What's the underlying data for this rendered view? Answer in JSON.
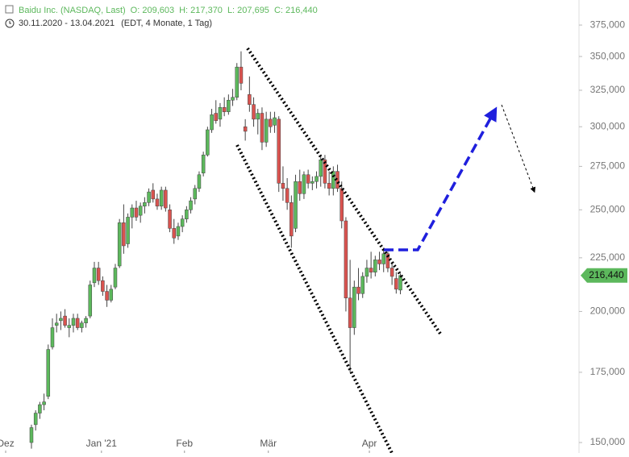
{
  "chart_data": {
    "type": "candlestick",
    "title": "Baidu Inc. (NASDAQ, Last)",
    "ohlc_labels": [
      "O: 209,603",
      "H: 217,370",
      "L: 207,695",
      "C: 216,440"
    ],
    "subtitle": "30.11.2020 - 13.04.2021",
    "subtitle_note": "(EDT, 4 Monate, 1 Tag)",
    "log_y": true,
    "up_color": "#5cb85c",
    "down_color": "#d9534f",
    "x": [
      0,
      1,
      2,
      3,
      4,
      5,
      6,
      7,
      8,
      9,
      10,
      11,
      12,
      13,
      14,
      15,
      16,
      17,
      18,
      19,
      20,
      21,
      22,
      23,
      24,
      25,
      26,
      27,
      28,
      29,
      30,
      31,
      32,
      33,
      34,
      35,
      36,
      37,
      38,
      39,
      40,
      41,
      42,
      43,
      44,
      45,
      46,
      47,
      48,
      49,
      50,
      51,
      52,
      53,
      54,
      55,
      56,
      57,
      58,
      59,
      60,
      61,
      62,
      63,
      64,
      65,
      66,
      67,
      68,
      69,
      70,
      71,
      72,
      73,
      74,
      75,
      76,
      77,
      78,
      79,
      80,
      81,
      82,
      83,
      84,
      85,
      86,
      87,
      88
    ],
    "open": [
      150000,
      156000,
      160000,
      163000,
      166000,
      185000,
      194000,
      196000,
      198000,
      193000,
      194000,
      197000,
      193000,
      195000,
      198000,
      213000,
      220000,
      214000,
      209000,
      205000,
      211000,
      221000,
      243000,
      232000,
      246000,
      251000,
      247000,
      252000,
      254000,
      261000,
      256000,
      252000,
      261000,
      250000,
      240000,
      236000,
      241000,
      245000,
      250000,
      256000,
      262000,
      271000,
      282000,
      298000,
      309000,
      305000,
      313000,
      310000,
      318000,
      320000,
      342000,
      300000,
      322000,
      315000,
      305000,
      309000,
      290000,
      305000,
      301000,
      305000,
      265000,
      262000,
      254000,
      240000,
      266000,
      259000,
      270000,
      265000,
      266000,
      269000,
      279000,
      265000,
      262000,
      272000,
      262000,
      244000,
      206000,
      193000,
      211000,
      208000,
      216000,
      220000,
      218000,
      224000,
      222000,
      227000,
      220000,
      215000,
      209603
    ],
    "high": [
      156000,
      161000,
      164000,
      167000,
      186000,
      197000,
      199000,
      200000,
      201000,
      197000,
      199000,
      199000,
      196000,
      198000,
      214000,
      223000,
      223000,
      216000,
      212000,
      212000,
      222000,
      245000,
      253000,
      248000,
      253000,
      255000,
      254000,
      257000,
      262000,
      265000,
      259000,
      263000,
      263000,
      253000,
      245000,
      243000,
      247000,
      252000,
      257000,
      264000,
      272000,
      284000,
      300000,
      312000,
      318000,
      316000,
      320000,
      322000,
      326000,
      345000,
      354000,
      305000,
      335000,
      320000,
      312000,
      313000,
      310000,
      310000,
      310000,
      307000,
      275000,
      268000,
      258000,
      270000,
      273000,
      272000,
      273000,
      269000,
      272000,
      282000,
      282000,
      272000,
      275000,
      276000,
      266000,
      246000,
      224000,
      214000,
      220000,
      218000,
      224000,
      228000,
      226000,
      228000,
      230000,
      228000,
      223000,
      218000,
      217370
    ],
    "low": [
      148000,
      154000,
      158000,
      161000,
      165000,
      184000,
      191000,
      192000,
      193000,
      189000,
      191000,
      192000,
      191000,
      193000,
      197000,
      211000,
      212000,
      207000,
      202000,
      204000,
      210000,
      220000,
      227000,
      230000,
      240000,
      244000,
      243000,
      248000,
      252000,
      254000,
      250000,
      250000,
      249000,
      238000,
      232000,
      234000,
      238000,
      243000,
      248000,
      253000,
      260000,
      269000,
      281000,
      296000,
      302000,
      300000,
      307000,
      308000,
      314000,
      318000,
      325000,
      291000,
      310000,
      300000,
      295000,
      285000,
      287000,
      296000,
      296000,
      260000,
      255000,
      250000,
      230000,
      238000,
      255000,
      256000,
      262000,
      261000,
      262000,
      263000,
      262000,
      258000,
      258000,
      260000,
      240000,
      200000,
      175000,
      190000,
      205000,
      206000,
      213000,
      215000,
      216000,
      219000,
      218000,
      218000,
      212000,
      208000,
      207695
    ],
    "close": [
      155000,
      160000,
      163000,
      164000,
      184000,
      193000,
      195000,
      197000,
      194000,
      194000,
      197000,
      193000,
      195000,
      197000,
      212000,
      220000,
      214000,
      209000,
      205000,
      210000,
      220000,
      243000,
      231000,
      246000,
      251000,
      246000,
      252000,
      254000,
      260000,
      256000,
      252000,
      261000,
      251000,
      240000,
      235000,
      241000,
      245000,
      250000,
      255000,
      262000,
      270000,
      282000,
      298000,
      308000,
      304000,
      313000,
      310000,
      318000,
      320000,
      342000,
      330000,
      297000,
      315000,
      305000,
      309000,
      290000,
      305000,
      300000,
      306000,
      265000,
      262000,
      254000,
      236000,
      266000,
      259000,
      270000,
      265000,
      266000,
      269000,
      279000,
      265000,
      262000,
      272000,
      262000,
      244000,
      206000,
      193000,
      211000,
      208000,
      216000,
      220000,
      218000,
      224000,
      222000,
      227000,
      220000,
      216000,
      210000,
      216440
    ],
    "last_label": "216,440",
    "xlim": [
      -7.5,
      130.6
    ],
    "xticks": [
      {
        "value": -6.15,
        "label": "Dez"
      },
      {
        "value": 16.7,
        "label": "Jan '21"
      },
      {
        "value": 36.5,
        "label": "Feb"
      },
      {
        "value": 56.5,
        "label": "Mär"
      },
      {
        "value": 80.6,
        "label": "Apr"
      }
    ],
    "ylim": [
      146600,
      396200
    ],
    "yticks": [
      {
        "value": 150000,
        "label": "150,000"
      },
      {
        "value": 175000,
        "label": "175,000"
      },
      {
        "value": 200000,
        "label": "200,000"
      },
      {
        "value": 225000,
        "label": "225,000"
      },
      {
        "value": 250000,
        "label": "250,000"
      },
      {
        "value": 275000,
        "label": "275,000"
      },
      {
        "value": 300000,
        "label": "300,000"
      },
      {
        "value": 325000,
        "label": "325,000"
      },
      {
        "value": 350000,
        "label": "350,000"
      },
      {
        "value": 375000,
        "label": "375,000"
      }
    ]
  }
}
